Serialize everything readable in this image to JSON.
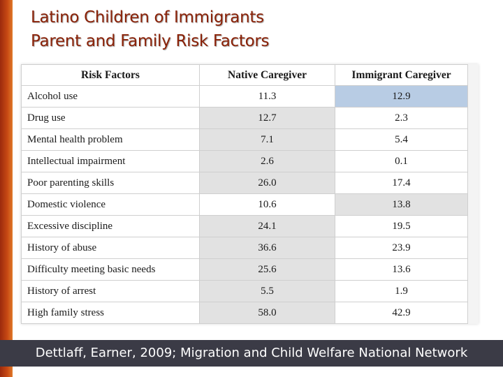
{
  "title": {
    "line1": "Latino Children of Immigrants",
    "line2": "Parent and Family Risk Factors"
  },
  "table": {
    "headers": [
      "Risk Factors",
      "Native Caregiver",
      "Immigrant Caregiver"
    ],
    "rows": [
      {
        "factor": "Alcohol use",
        "native": "11.3",
        "immigrant": "12.9"
      },
      {
        "factor": "Drug use",
        "native": "12.7",
        "immigrant": "2.3"
      },
      {
        "factor": "Mental health problem",
        "native": "7.1",
        "immigrant": "5.4"
      },
      {
        "factor": "Intellectual impairment",
        "native": "2.6",
        "immigrant": "0.1"
      },
      {
        "factor": "Poor parenting skills",
        "native": "26.0",
        "immigrant": "17.4"
      },
      {
        "factor": "Domestic violence",
        "native": "10.6",
        "immigrant": "13.8"
      },
      {
        "factor": "Excessive discipline",
        "native": "24.1",
        "immigrant": "19.5"
      },
      {
        "factor": "History of abuse",
        "native": "36.6",
        "immigrant": "23.9"
      },
      {
        "factor": "Difficulty meeting basic needs",
        "native": "25.6",
        "immigrant": "13.6"
      },
      {
        "factor": "History of arrest",
        "native": "5.5",
        "immigrant": "1.9"
      },
      {
        "factor": "High family stress",
        "native": "58.0",
        "immigrant": "42.9"
      }
    ]
  },
  "footer": {
    "citation": "Dettlaff, Earner, 2009; Migration and Child Welfare National Network"
  },
  "colors": {
    "title": "#8a2208",
    "highlight_blue": "#b8cce4",
    "highlight_gray": "#e2e2e2",
    "footer_bg": "#3b3b46"
  }
}
